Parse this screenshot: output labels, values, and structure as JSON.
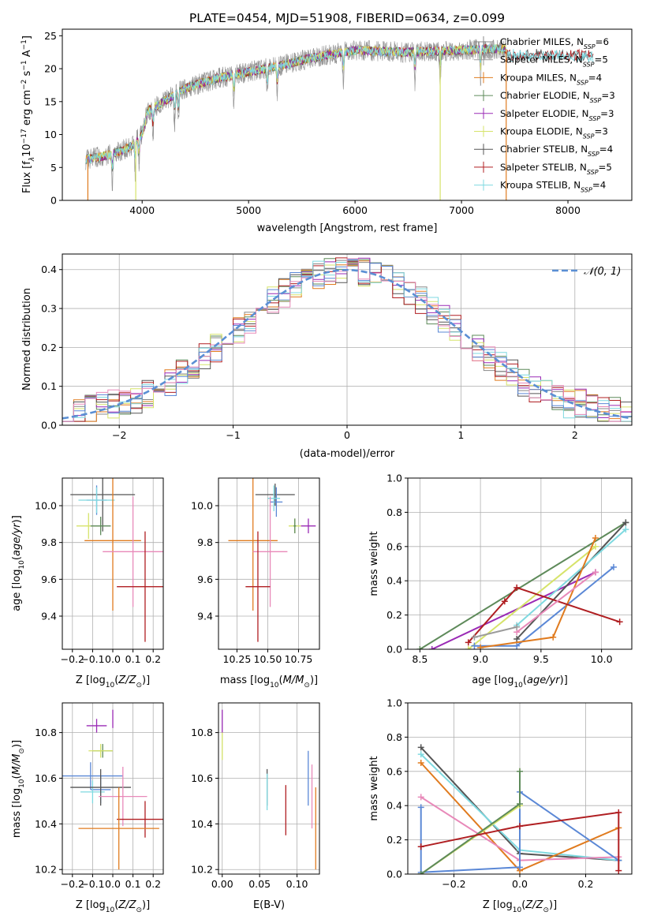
{
  "figure_title": "PLATE=0454, MJD=51908, FIBERID=0634, z=0.099",
  "colors": {
    "Chabrier MILES": "#888888",
    "Salpeter MILES": "#9b9b9b",
    "Kroupa MILES": "#e07b1f",
    "Chabrier ELODIE": "#5e8a5a",
    "Salpeter ELODIE": "#9a2ab5",
    "Kroupa ELODIE": "#d6e36a",
    "Chabrier STELIB": "#555555",
    "Salpeter STELIB": "#b01f22",
    "Kroupa STELIB": "#7fd9e0",
    "blue": "#5b88d6",
    "pink": "#e889b9",
    "gaussian": "#5b8fd4"
  },
  "chart_data": [
    {
      "type": "line",
      "panel": "spectrum",
      "xlabel": "wavelength [Angstrom, rest frame]",
      "ylabel_parts": [
        "Flux [f",
        "λ",
        "10",
        "−17",
        " erg cm",
        "−2",
        " s",
        "−1",
        " A",
        "−1",
        "]"
      ],
      "xlim": [
        3250,
        8600
      ],
      "ylim": [
        0,
        26
      ],
      "xticks": [
        4000,
        5000,
        6000,
        7000,
        8000
      ],
      "yticks": [
        0,
        5,
        10,
        15,
        20,
        25
      ],
      "continuum_knots": [
        [
          3470,
          6.2
        ],
        [
          3600,
          6.6
        ],
        [
          3750,
          7.2
        ],
        [
          3900,
          8.2
        ],
        [
          4000,
          10
        ],
        [
          4050,
          13.5
        ],
        [
          4200,
          15
        ],
        [
          4400,
          17
        ],
        [
          4700,
          18.5
        ],
        [
          5000,
          19.5
        ],
        [
          5300,
          20.5
        ],
        [
          5700,
          22
        ],
        [
          6000,
          22.8
        ],
        [
          6500,
          22.5
        ],
        [
          7000,
          22.8
        ],
        [
          7300,
          23
        ],
        [
          7420,
          23
        ]
      ],
      "absorption_dips": [
        3720,
        3935,
        3970,
        4102,
        4304,
        4340,
        4861,
        5175,
        5270,
        5890,
        6563,
        6800,
        7180
      ],
      "stelib_tail": {
        "x_end": 8240,
        "y": 22
      },
      "legend": [
        {
          "series": "Chabrier MILES",
          "label": "Chabrier MILES, N",
          "sub": "SSP",
          "n": "=6"
        },
        {
          "series": "Salpeter MILES",
          "label": "Salpeter MILES, N",
          "sub": "SSP",
          "n": "=5"
        },
        {
          "series": "Kroupa MILES",
          "label": "Kroupa MILES, N",
          "sub": "SSP",
          "n": "=4"
        },
        {
          "series": "Chabrier ELODIE",
          "label": "Chabrier ELODIE, N",
          "sub": "SSP",
          "n": "=3"
        },
        {
          "series": "Salpeter ELODIE",
          "label": "Salpeter ELODIE, N",
          "sub": "SSP",
          "n": "=3"
        },
        {
          "series": "Kroupa ELODIE",
          "label": "Kroupa ELODIE, N",
          "sub": "SSP",
          "n": "=3"
        },
        {
          "series": "Chabrier STELIB",
          "label": "Chabrier STELIB, N",
          "sub": "SSP",
          "n": "=4"
        },
        {
          "series": "Salpeter STELIB",
          "label": "Salpeter STELIB, N",
          "sub": "SSP",
          "n": "=5"
        },
        {
          "series": "Kroupa STELIB",
          "label": "Kroupa STELIB, N",
          "sub": "SSP",
          "n": "=4"
        }
      ]
    },
    {
      "type": "histogram",
      "panel": "residuals",
      "xlabel": "(data-model)/error",
      "ylabel": "Normed distribution",
      "xlim": [
        -2.5,
        2.5
      ],
      "ylim": [
        0,
        0.44
      ],
      "xticks": [
        -2,
        -1,
        0,
        1,
        2
      ],
      "yticks": [
        0.0,
        0.1,
        0.2,
        0.3,
        0.4
      ],
      "bin_width": 0.1,
      "gaussian": {
        "mean": 0,
        "sigma": 1,
        "label": "𝒩(0, 1)"
      },
      "series_colors": [
        "#888888",
        "#e07b1f",
        "#5e8a5a",
        "#9a2ab5",
        "#d6e36a",
        "#555555",
        "#b01f22",
        "#7fd9e0",
        "#5b88d6",
        "#e889b9"
      ]
    },
    {
      "type": "errorbar",
      "panel": "age_vs_Z",
      "xlabel": "Z [log10(Z/Z☉)]",
      "ylabel": "age  [log10(age/yr)]",
      "xlim": [
        -0.25,
        0.25
      ],
      "ylim": [
        9.22,
        10.15
      ],
      "xticks": [
        -0.2,
        -0.1,
        0.0,
        0.1,
        0.2
      ],
      "yticks": [
        9.4,
        9.6,
        9.8,
        10.0
      ],
      "points": [
        {
          "x": -0.05,
          "xerr": 0.16,
          "y": 10.06,
          "yerr": 0.2,
          "color": "#555555"
        },
        {
          "x": -0.08,
          "xerr": 0.05,
          "y": 10.03,
          "yerr": 0.08,
          "color": "#5b88d6"
        },
        {
          "x": -0.08,
          "xerr": 0.09,
          "y": 10.03,
          "yerr": 0.07,
          "color": "#7fd9e0"
        },
        {
          "x": -0.12,
          "xerr": 0.06,
          "y": 9.89,
          "yerr": 0.07,
          "color": "#d6e36a"
        },
        {
          "x": -0.06,
          "xerr": 0.05,
          "y": 9.89,
          "yerr": 0.05,
          "color": "#5e8a5a"
        },
        {
          "x": 0.0,
          "xerr": 0.14,
          "y": 9.81,
          "yerr": 0.38,
          "color": "#e07b1f"
        },
        {
          "x": 0.1,
          "xerr": 0.15,
          "y": 9.75,
          "yerr": 0.3,
          "color": "#e889b9"
        },
        {
          "x": 0.16,
          "xerr": 0.14,
          "y": 9.56,
          "yerr": 0.3,
          "color": "#b01f22"
        }
      ]
    },
    {
      "type": "errorbar",
      "panel": "age_vs_mass",
      "xlabel": "mass [log10(M/M☉)]",
      "ylabel": "",
      "xlim": [
        10.1,
        10.92
      ],
      "ylim": [
        9.22,
        10.15
      ],
      "xticks": [
        10.25,
        10.5,
        10.75
      ],
      "yticks": [
        9.4,
        9.6,
        9.8,
        10.0
      ],
      "points": [
        {
          "x": 10.56,
          "xerr": 0.16,
          "y": 10.06,
          "yerr": 0.06,
          "color": "#555555"
        },
        {
          "x": 10.57,
          "xerr": 0.05,
          "y": 10.02,
          "yerr": 0.08,
          "color": "#5b88d6"
        },
        {
          "x": 10.55,
          "xerr": 0.05,
          "y": 10.04,
          "yerr": 0.07,
          "color": "#7fd9e0"
        },
        {
          "x": 10.72,
          "xerr": 0.05,
          "y": 9.89,
          "yerr": 0.04,
          "color": "#d6e36a"
        },
        {
          "x": 10.72,
          "xerr": 0.01,
          "y": 9.89,
          "yerr": 0.04,
          "color": "#5e8a5a"
        },
        {
          "x": 10.83,
          "xerr": 0.06,
          "y": 9.89,
          "yerr": 0.04,
          "color": "#9a2ab5"
        },
        {
          "x": 10.38,
          "xerr": 0.2,
          "y": 9.81,
          "yerr": 0.38,
          "color": "#e07b1f"
        },
        {
          "x": 10.52,
          "xerr": 0.14,
          "y": 9.75,
          "yerr": 0.3,
          "color": "#e889b9"
        },
        {
          "x": 10.42,
          "xerr": 0.1,
          "y": 9.56,
          "yerr": 0.3,
          "color": "#b01f22"
        }
      ]
    },
    {
      "type": "line",
      "panel": "mass_weight_vs_age",
      "xlabel": "age  [log10(age/yr)]",
      "ylabel": "mass weight",
      "xlim": [
        8.4,
        10.25
      ],
      "ylim": [
        0,
        1.0
      ],
      "xticks": [
        8.5,
        9.0,
        9.5,
        10.0
      ],
      "yticks": [
        0.0,
        0.2,
        0.4,
        0.6,
        0.8,
        1.0
      ],
      "series": [
        {
          "color": "#5e8a5a",
          "x": [
            8.5,
            10.2
          ],
          "y": [
            0.0,
            0.74
          ]
        },
        {
          "color": "#9a2ab5",
          "x": [
            8.6,
            9.95
          ],
          "y": [
            0.0,
            0.45
          ]
        },
        {
          "color": "#d6e36a",
          "x": [
            8.9,
            9.95
          ],
          "y": [
            0.0,
            0.6
          ]
        },
        {
          "color": "#555555",
          "x": [
            9.3,
            10.2
          ],
          "y": [
            0.06,
            0.74
          ]
        },
        {
          "color": "#7fd9e0",
          "x": [
            9.3,
            10.2
          ],
          "y": [
            0.14,
            0.7
          ]
        },
        {
          "color": "#5b88d6",
          "x": [
            8.95,
            9.3,
            10.1
          ],
          "y": [
            0.02,
            0.02,
            0.48
          ]
        },
        {
          "color": "#e07b1f",
          "x": [
            9.0,
            9.6,
            9.95
          ],
          "y": [
            0.01,
            0.07,
            0.65
          ]
        },
        {
          "color": "#b01f22",
          "x": [
            8.9,
            9.2,
            9.3,
            10.15
          ],
          "y": [
            0.04,
            0.28,
            0.36,
            0.16
          ]
        },
        {
          "color": "#e889b9",
          "x": [
            9.3,
            9.95
          ],
          "y": [
            0.1,
            0.45
          ]
        },
        {
          "color": "#9b9b9b",
          "x": [
            8.95,
            9.3
          ],
          "y": [
            0.07,
            0.13
          ]
        }
      ]
    },
    {
      "type": "errorbar",
      "panel": "mass_vs_Z",
      "xlabel": "Z [log10(Z/Z☉)]",
      "ylabel": "mass [log10(M/M☉)]",
      "xlim": [
        -0.25,
        0.25
      ],
      "ylim": [
        10.18,
        10.93
      ],
      "xticks": [
        -0.2,
        -0.1,
        0.0,
        0.1,
        0.2
      ],
      "yticks": [
        10.2,
        10.4,
        10.6,
        10.8
      ],
      "points": [
        {
          "x": 0.0,
          "xerr": 0.0,
          "y": 10.86,
          "yerr": 0.04,
          "color": "#9a2ab5"
        },
        {
          "x": -0.08,
          "xerr": 0.05,
          "y": 10.83,
          "yerr": 0.03,
          "color": "#9a2ab5"
        },
        {
          "x": -0.05,
          "xerr": 0.05,
          "y": 10.72,
          "yerr": 0.03,
          "color": "#5e8a5a"
        },
        {
          "x": -0.06,
          "xerr": 0.06,
          "y": 10.72,
          "yerr": 0.03,
          "color": "#d6e36a"
        },
        {
          "x": -0.11,
          "xerr": 0.16,
          "y": 10.61,
          "yerr": 0.06,
          "color": "#5b88d6"
        },
        {
          "x": -0.06,
          "xerr": 0.05,
          "y": 10.55,
          "yerr": 0.06,
          "color": "#5b88d6"
        },
        {
          "x": -0.1,
          "xerr": 0.06,
          "y": 10.54,
          "yerr": 0.05,
          "color": "#7fd9e0"
        },
        {
          "x": -0.06,
          "xerr": 0.15,
          "y": 10.56,
          "yerr": 0.08,
          "color": "#555555"
        },
        {
          "x": 0.05,
          "xerr": 0.12,
          "y": 10.52,
          "yerr": 0.13,
          "color": "#e889b9"
        },
        {
          "x": 0.16,
          "xerr": 0.14,
          "y": 10.42,
          "yerr": 0.08,
          "color": "#b01f22"
        },
        {
          "x": 0.03,
          "xerr": 0.2,
          "y": 10.38,
          "yerr": 0.18,
          "color": "#e07b1f"
        }
      ]
    },
    {
      "type": "errorbar",
      "panel": "mass_vs_ebv",
      "xlabel": "E(B-V)",
      "ylabel": "",
      "xlim": [
        -0.005,
        0.13
      ],
      "ylim": [
        10.18,
        10.93
      ],
      "xticks": [
        0.0,
        0.05,
        0.1
      ],
      "yticks": [
        10.2,
        10.4,
        10.6,
        10.8
      ],
      "points": [
        {
          "x": 0.0,
          "xerr": 0,
          "y": 10.85,
          "yerr": 0.05,
          "color": "#9a2ab5"
        },
        {
          "x": 0.0,
          "xerr": 0,
          "y": 10.74,
          "yerr": 0.06,
          "color": "#d6e36a"
        },
        {
          "x": 0.06,
          "xerr": 0,
          "y": 10.56,
          "yerr": 0.08,
          "color": "#555555"
        },
        {
          "x": 0.06,
          "xerr": 0,
          "y": 10.54,
          "yerr": 0.08,
          "color": "#7fd9e0"
        },
        {
          "x": 0.085,
          "xerr": 0,
          "y": 10.46,
          "yerr": 0.11,
          "color": "#b01f22"
        },
        {
          "x": 0.115,
          "xerr": 0,
          "y": 10.6,
          "yerr": 0.12,
          "color": "#5b88d6"
        },
        {
          "x": 0.12,
          "xerr": 0,
          "y": 10.52,
          "yerr": 0.14,
          "color": "#e889b9"
        },
        {
          "x": 0.125,
          "xerr": 0,
          "y": 10.38,
          "yerr": 0.18,
          "color": "#e07b1f"
        }
      ]
    },
    {
      "type": "line",
      "panel": "mass_weight_vs_Z",
      "xlabel": "Z [log10(Z/Z☉)]",
      "ylabel": "mass weight",
      "xlim": [
        -0.34,
        0.34
      ],
      "ylim": [
        0,
        1.0
      ],
      "xticks": [
        -0.2,
        0.0,
        0.2
      ],
      "yticks": [
        0.0,
        0.2,
        0.4,
        0.6,
        0.8,
        1.0
      ],
      "series": [
        {
          "color": "#555555",
          "x": [
            -0.3,
            0.0,
            0.3
          ],
          "y": [
            0.74,
            0.12,
            0.08
          ]
        },
        {
          "color": "#7fd9e0",
          "x": [
            -0.3,
            0.0,
            0.3
          ],
          "y": [
            0.7,
            0.14,
            0.08
          ]
        },
        {
          "color": "#e07b1f",
          "x": [
            -0.3,
            0.0,
            0.3
          ],
          "y": [
            0.65,
            0.02,
            0.27
          ]
        },
        {
          "color": "#e889b9",
          "x": [
            -0.3,
            0.0,
            0.3
          ],
          "y": [
            0.45,
            0.08,
            0.1
          ]
        },
        {
          "color": "#5b88d6",
          "x": [
            -0.3,
            -0.3,
            0.0,
            0.0,
            0.3
          ],
          "y": [
            0.39,
            0.01,
            0.04,
            0.48,
            0.08
          ]
        },
        {
          "color": "#d6e36a",
          "x": [
            -0.3,
            0.0,
            0.0
          ],
          "y": [
            0.0,
            0.4,
            0.6
          ]
        },
        {
          "color": "#5e8a5a",
          "x": [
            -0.3,
            0.0,
            0.0
          ],
          "y": [
            0.0,
            0.41,
            0.6
          ]
        },
        {
          "color": "#b01f22",
          "x": [
            -0.3,
            0.0,
            0.3,
            0.3
          ],
          "y": [
            0.16,
            0.28,
            0.36,
            0.02
          ]
        }
      ]
    }
  ]
}
